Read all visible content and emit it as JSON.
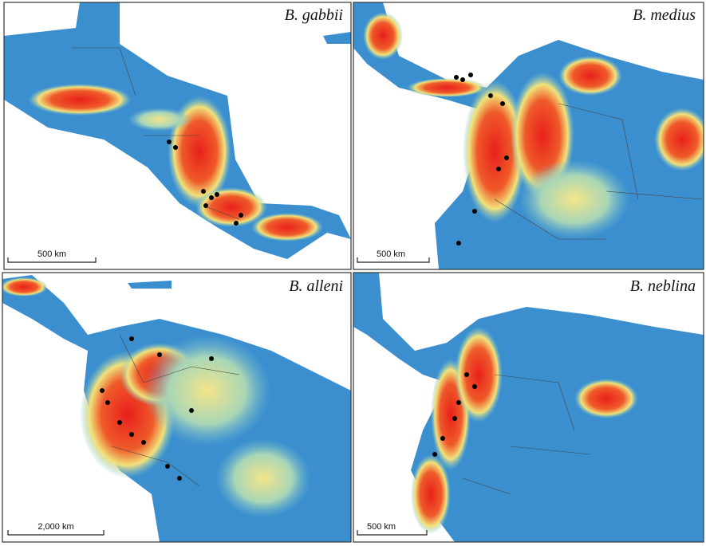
{
  "panels": [
    {
      "title": "B. gabbii",
      "scale": "500 km"
    },
    {
      "title": "B. medius",
      "scale": "500 km"
    },
    {
      "title": "B. alleni",
      "scale": "2,000 km"
    },
    {
      "title": "B. neblina",
      "scale": "500 km"
    }
  ]
}
